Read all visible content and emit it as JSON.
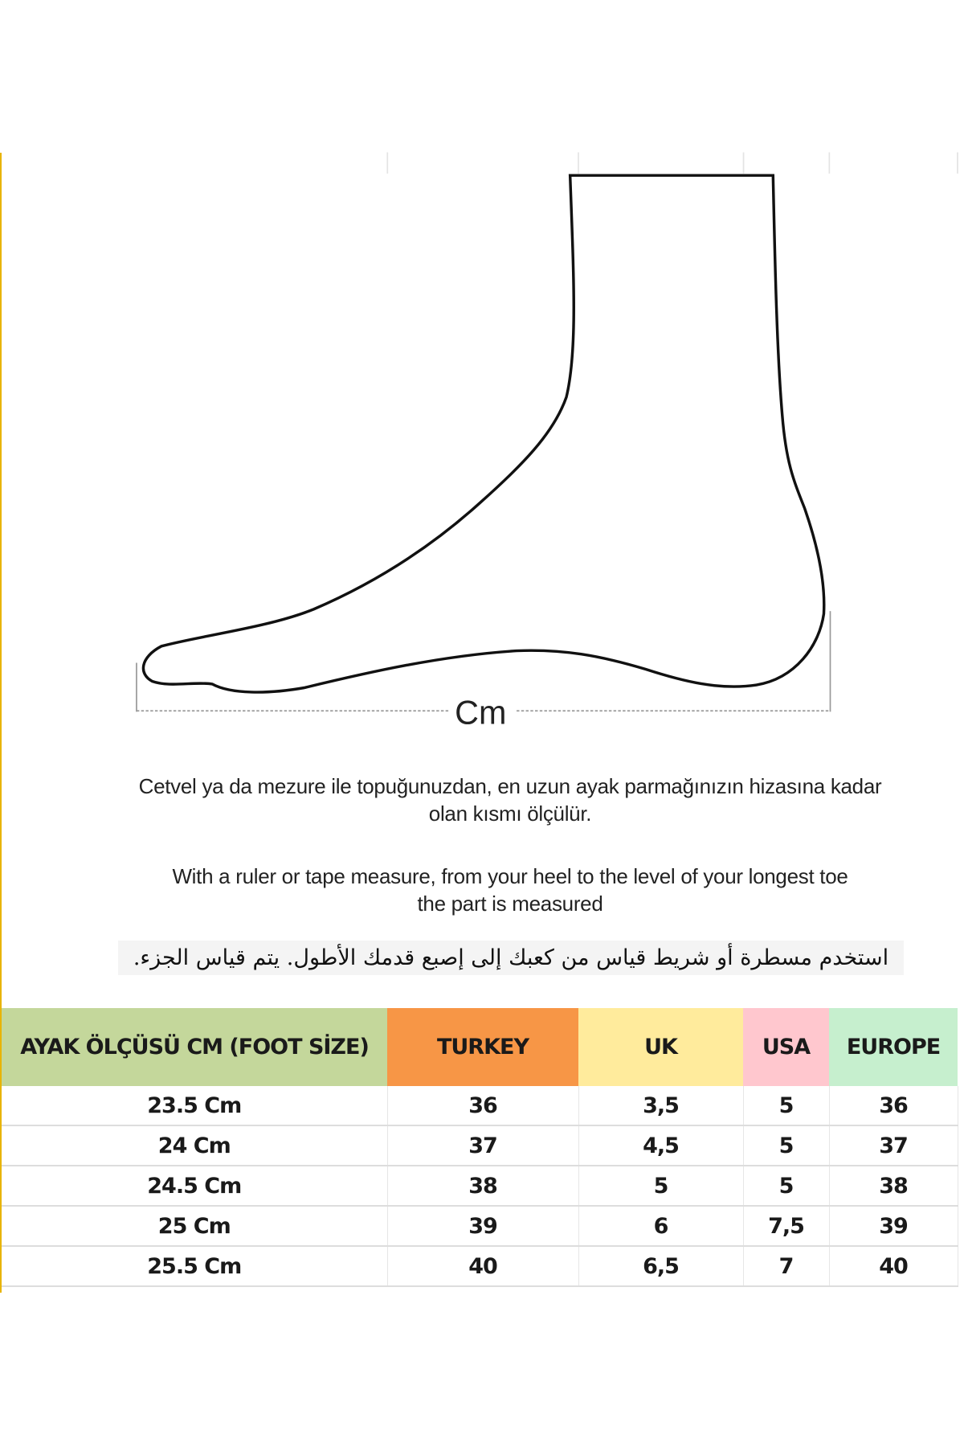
{
  "diagram": {
    "unit_label": "Cm",
    "icon": "foot-outline"
  },
  "instructions": {
    "turkish_line1": "Cetvel ya da mezure ile topuğunuzdan, en uzun ayak parmağınızın hizasına kadar",
    "turkish_line2": "olan kısmı ölçülür.",
    "english_line1": "With a ruler or tape measure, from your heel to the level of your longest toe",
    "english_line2": "the part is measured",
    "arabic": "استخدم مسطرة أو شريط قياس من  كعبك إلى إصبع قدمك الأطول.  يتم قياس الجزء."
  },
  "table": {
    "headers": [
      {
        "label": "AYAK ÖLÇÜSÜ CM (FOOT SİZE)",
        "color": "#c4d79b"
      },
      {
        "label": "TURKEY",
        "color": "#f79646"
      },
      {
        "label": "UK",
        "color": "#ffeb9c"
      },
      {
        "label": "USA",
        "color": "#ffc7ce"
      },
      {
        "label": "EUROPE",
        "color": "#c6efce"
      }
    ],
    "rows": [
      [
        "23.5 Cm",
        "36",
        "3,5",
        "5",
        "36"
      ],
      [
        "24 Cm",
        "37",
        "4,5",
        "5",
        "37"
      ],
      [
        "24.5 Cm",
        "38",
        "5",
        "5",
        "38"
      ],
      [
        "25 Cm",
        "39",
        "6",
        "7,5",
        "39"
      ],
      [
        "25.5 Cm",
        "40",
        "6,5",
        "7",
        "40"
      ]
    ]
  }
}
